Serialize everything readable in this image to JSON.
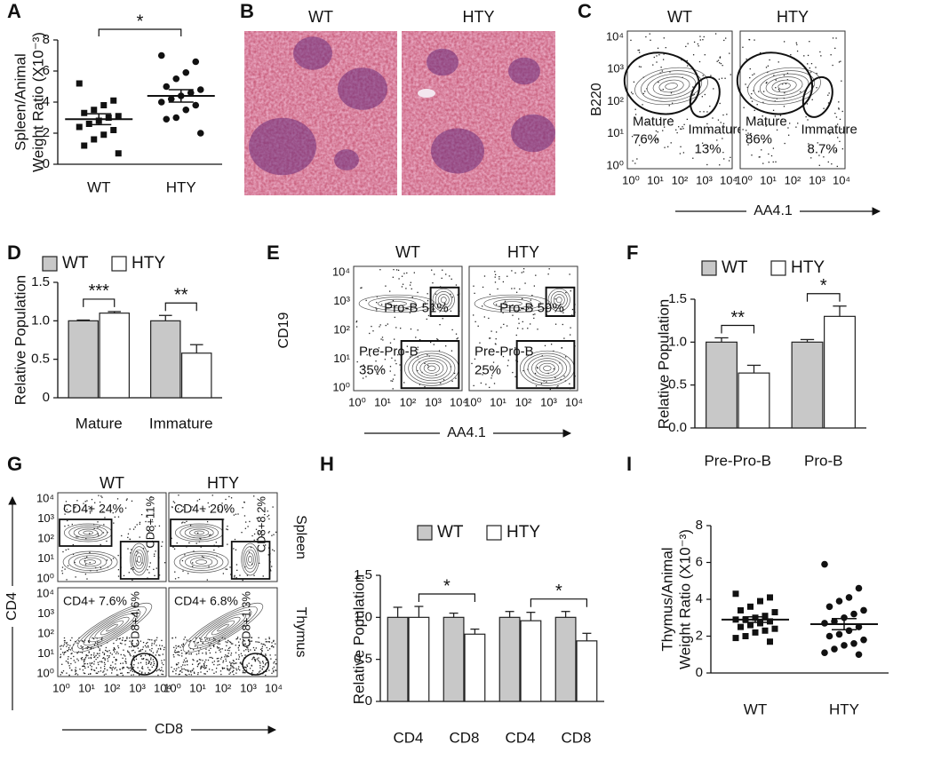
{
  "chart_data": [
    {
      "panel": "A",
      "type": "scatter",
      "y_label": [
        "Spleen/Animal",
        "Weight Ratio (X10⁻³)"
      ],
      "categories": [
        "WT",
        "HTY"
      ],
      "groups": [
        {
          "marker": "square",
          "values": [
            5.2,
            4.1,
            3.8,
            3.5,
            3.3,
            3.1,
            3.0,
            2.8,
            2.6,
            2.4,
            2.2,
            1.9,
            1.6,
            1.2,
            0.7
          ],
          "mean": 2.9,
          "sem": 0.35
        },
        {
          "marker": "circle",
          "values": [
            7.0,
            6.6,
            5.9,
            5.5,
            5.0,
            4.8,
            4.6,
            4.4,
            4.2,
            4.0,
            3.8,
            3.5,
            3.0,
            2.9,
            2.0
          ],
          "mean": 4.4,
          "sem": 0.4
        }
      ],
      "ylim": [
        0,
        8
      ],
      "yticks": [
        0,
        2,
        4,
        6,
        8
      ],
      "significance": "*"
    },
    {
      "panel": "D",
      "type": "bar",
      "y_label": [
        "Relative Population"
      ],
      "categories": [
        "Mature",
        "Immature"
      ],
      "series": [
        {
          "name": "WT",
          "color": "#c8c8c8",
          "values": [
            1.0,
            1.0
          ],
          "errors": [
            0.01,
            0.07
          ]
        },
        {
          "name": "HTY",
          "color": "#ffffff",
          "values": [
            1.1,
            0.58
          ],
          "errors": [
            0.02,
            0.11
          ]
        }
      ],
      "ylim": [
        0,
        1.5
      ],
      "yticks": [
        0,
        0.5,
        {
          "value": 1,
          "label": "1.0"
        },
        1.5
      ],
      "legend": "top-left",
      "significance": [
        "***",
        "**"
      ],
      "bracket": "within"
    },
    {
      "panel": "F",
      "type": "bar",
      "y_label": [
        "Relative Population"
      ],
      "categories": [
        "Pre-Pro-B",
        "Pro-B"
      ],
      "series": [
        {
          "name": "WT",
          "color": "#c8c8c8",
          "values": [
            1.0,
            1.0
          ],
          "errors": [
            0.05,
            0.03
          ]
        },
        {
          "name": "HTY",
          "color": "#ffffff",
          "values": [
            0.64,
            1.3
          ],
          "errors": [
            0.09,
            0.12
          ]
        }
      ],
      "ylim": [
        0,
        1.5
      ],
      "yticks": [
        {
          "value": 0,
          "label": "0.0"
        },
        0.5,
        {
          "value": 1,
          "label": "1.0"
        },
        1.5
      ],
      "legend": "top-left",
      "significance": [
        "**",
        "*"
      ],
      "bracket": "within"
    },
    {
      "panel": "H",
      "type": "bar",
      "y_label": [
        "Relative Population"
      ],
      "categories": [
        "CD4",
        "CD8",
        "CD4",
        "CD8"
      ],
      "series": [
        {
          "name": "WT",
          "color": "#c8c8c8",
          "values": [
            1.0,
            1.0,
            1.0,
            1.0
          ],
          "errors": [
            0.12,
            0.05,
            0.07,
            0.07
          ]
        },
        {
          "name": "HTY",
          "color": "#ffffff",
          "values": [
            1.0,
            0.8,
            0.96,
            0.72
          ],
          "errors": [
            0.13,
            0.06,
            0.1,
            0.09
          ]
        }
      ],
      "ylim": [
        0,
        1.5
      ],
      "yticks": [
        0,
        0.5,
        {
          "value": 1,
          "label": "1.0"
        },
        1.5
      ],
      "legend": "top-left",
      "significance": [
        null,
        "*",
        null,
        "*"
      ],
      "bracket": "across"
    },
    {
      "panel": "I",
      "type": "scatter",
      "y_label": [
        "Thymus/Animal",
        "Weight Ratio (X10⁻³)"
      ],
      "categories": [
        "WT",
        "HTY"
      ],
      "groups": [
        {
          "marker": "square",
          "values": [
            4.3,
            4.1,
            3.9,
            3.6,
            3.4,
            3.3,
            3.1,
            3.0,
            2.9,
            2.9,
            2.8,
            2.7,
            2.6,
            2.5,
            2.4,
            2.3,
            2.2,
            2.0,
            1.9,
            1.7
          ],
          "mean": 2.9,
          "sem": 0.15
        },
        {
          "marker": "circle",
          "values": [
            5.9,
            4.6,
            4.1,
            3.9,
            3.6,
            3.4,
            3.2,
            3.0,
            2.8,
            2.7,
            2.5,
            2.3,
            2.1,
            2.0,
            1.8,
            1.6,
            1.5,
            1.3,
            1.1,
            1.0
          ],
          "mean": 2.65,
          "sem": 0.3
        }
      ],
      "ylim": [
        0,
        8
      ],
      "yticks": [
        0,
        2,
        4,
        6,
        8
      ]
    }
  ],
  "histology": {
    "panel": "B",
    "columns": [
      "WT",
      "HTY"
    ]
  },
  "flow": [
    {
      "panel": "C",
      "columns": [
        "WT",
        "HTY"
      ],
      "y_label": "B220",
      "x_label": "AA4.1",
      "ticks": [
        "10⁰",
        "10¹",
        "10²",
        "10³",
        "10⁴"
      ],
      "texts": [
        [
          "Mature",
          "76%",
          "Immature",
          "13%"
        ],
        [
          "Mature",
          "86%",
          "Immature",
          "8.7%"
        ]
      ]
    },
    {
      "panel": "E",
      "columns": [
        "WT",
        "HTY"
      ],
      "y_label": "CD19",
      "x_label": "AA4.1",
      "ticks": [
        "10⁰",
        "10¹",
        "10²",
        "10³",
        "10⁴"
      ],
      "texts": [
        [
          "Pro-B 51%",
          "Pre-Pro-B",
          "35%"
        ],
        [
          "Pro-B 59%",
          "Pre-Pro-B",
          "25%"
        ]
      ]
    },
    {
      "panel": "G",
      "columns": [
        "WT",
        "HTY"
      ],
      "y_label": "CD4",
      "x_label": "CD8",
      "ticks": [
        "10⁰",
        "10¹",
        "10²",
        "10³",
        "10⁴"
      ],
      "row_labels": [
        "Spleen",
        "Thymus"
      ],
      "texts": [
        [
          [
            "CD4+ 24%",
            "CD8+11%"
          ],
          [
            "CD4+ 20%",
            "CD8+8.2%"
          ]
        ],
        [
          [
            "CD4+ 7.6%",
            "CD8+4.6%"
          ],
          [
            "CD4+ 6.8%",
            "CD8+1.3%"
          ]
        ]
      ]
    }
  ]
}
